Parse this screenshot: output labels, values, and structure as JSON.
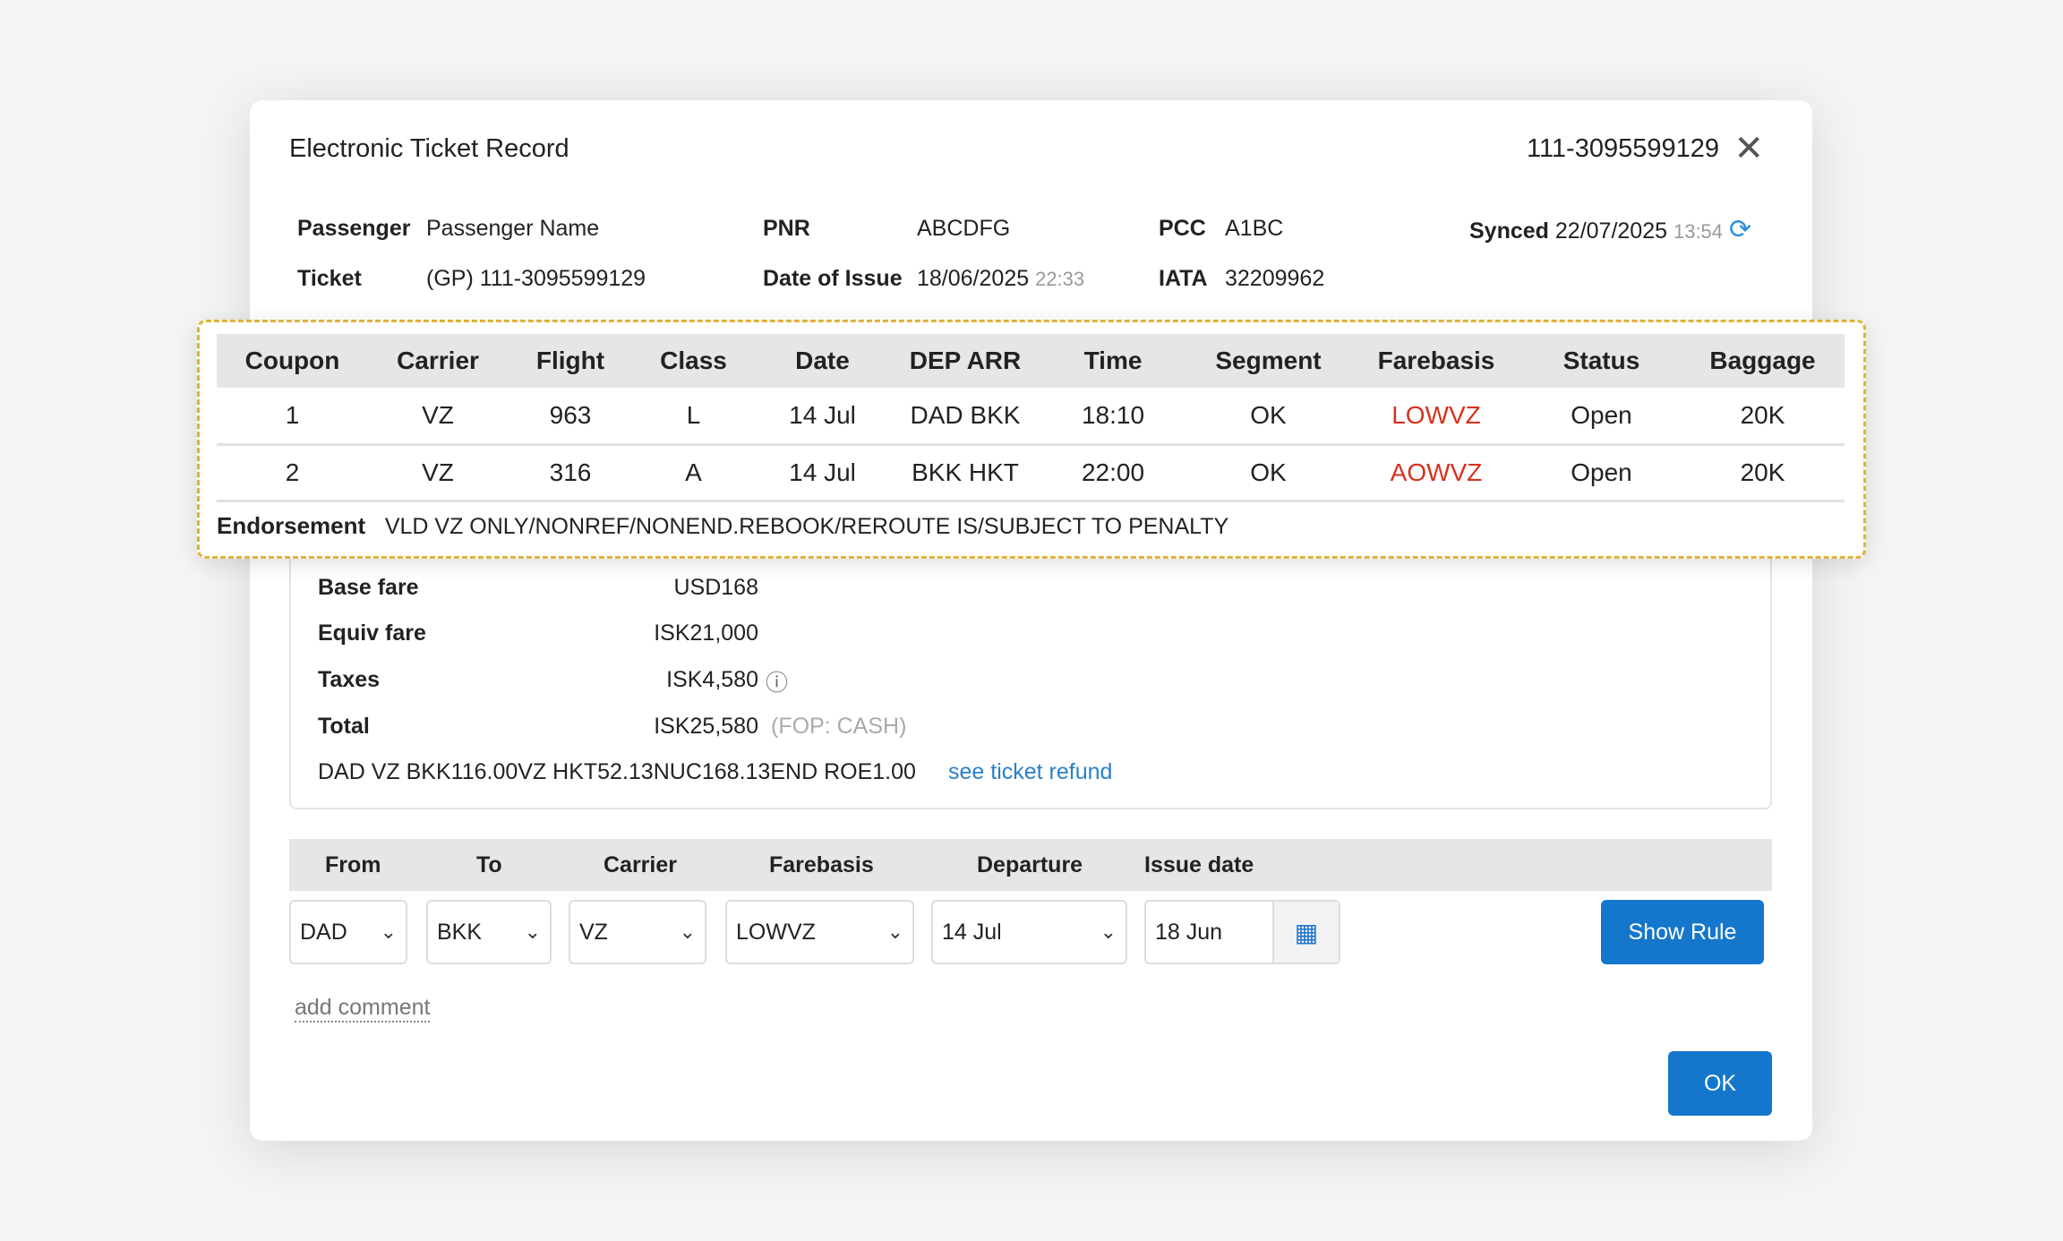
{
  "header": {
    "title": "Electronic Ticket Record",
    "ticket_number": "111-3095599129"
  },
  "info": {
    "passenger_label": "Passenger",
    "passenger": "Passenger Name",
    "pnr_label": "PNR",
    "pnr": "ABCDFG",
    "pcc_label": "PCC",
    "pcc": "A1BC",
    "synced_label": "Synced",
    "synced_date": "22/07/2025",
    "synced_time": "13:54",
    "ticket_label": "Ticket",
    "ticket": "(GP) 111-3095599129",
    "issue_label": "Date of Issue",
    "issue_date": "18/06/2025",
    "issue_time": "22:33",
    "iata_label": "IATA",
    "iata": "32209962"
  },
  "segments": {
    "columns": [
      "Coupon",
      "Carrier",
      "Flight",
      "Class",
      "Date",
      "DEP ARR",
      "Time",
      "Segment",
      "Farebasis",
      "Status",
      "Baggage"
    ],
    "rows": [
      [
        "1",
        "VZ",
        "963",
        "L",
        "14 Jul",
        "DAD BKK",
        "18:10",
        "OK",
        "LOWVZ",
        "Open",
        "20K"
      ],
      [
        "2",
        "VZ",
        "316",
        "A",
        "14 Jul",
        "BKK HKT",
        "22:00",
        "OK",
        "AOWVZ",
        "Open",
        "20K"
      ]
    ]
  },
  "endorsement": {
    "label": "Endorsement",
    "text": "VLD VZ ONLY/NONREF/NONEND.REBOOK/REROUTE IS/SUBJECT TO PENALTY"
  },
  "fare": {
    "base_label": "Base fare",
    "base": "USD168",
    "equiv_label": "Equiv fare",
    "equiv": "ISK21,000",
    "taxes_label": "Taxes",
    "taxes": "ISK4,580",
    "total_label": "Total",
    "total": "ISK25,580",
    "fop": "(FOP: CASH)",
    "calc": "DAD VZ BKK116.00VZ HKT52.13NUC168.13END ROE1.00",
    "refund_link": "see ticket refund"
  },
  "rule": {
    "headers": [
      "From",
      "To",
      "Carrier",
      "Farebasis",
      "Departure",
      "Issue date"
    ],
    "from": "DAD",
    "to": "BKK",
    "carrier": "VZ",
    "farebasis": "LOWVZ",
    "departure": "14 Jul",
    "issue_date": "18 Jun",
    "show_rule": "Show Rule"
  },
  "add_comment": "add comment",
  "ok": "OK",
  "colors": {
    "accent": "#1477cc",
    "farebasis": "#d6321e",
    "highlight_border": "#e3b13a"
  }
}
